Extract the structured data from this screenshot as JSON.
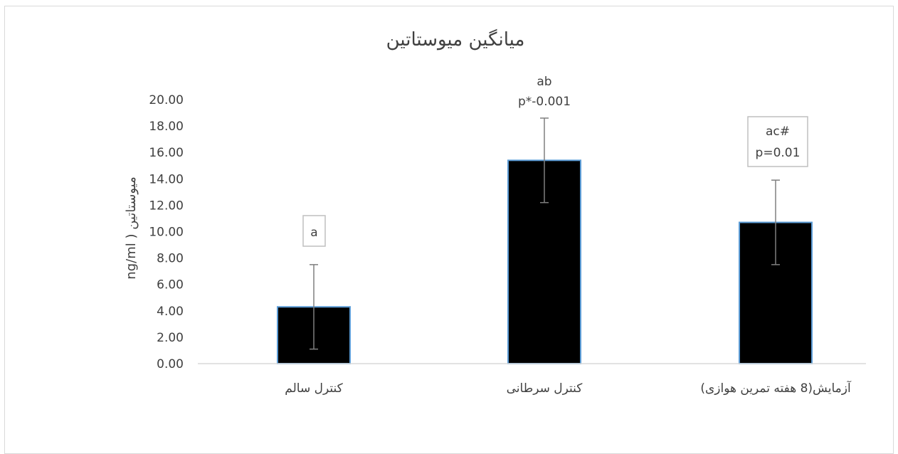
{
  "chart_data": {
    "type": "bar",
    "title": "میانگین میوستاتین",
    "ylabel": "ng/ml )  میوستاتین",
    "xlabel": "",
    "ylim": [
      0,
      20
    ],
    "ytick_step": 2,
    "ytick_labels": [
      "0.00",
      "2.00",
      "4.00",
      "6.00",
      "8.00",
      "10.00",
      "12.00",
      "14.00",
      "16.00",
      "18.00",
      "20.00"
    ],
    "grid": false,
    "legend": "none",
    "categories": [
      "کنترل سالم",
      "کنترل سرطانی",
      "آزمایش(8 هفته تمرین هوازی)"
    ],
    "values": [
      4.3,
      15.4,
      10.7
    ],
    "error_low": [
      1.1,
      12.2,
      7.5
    ],
    "error_high": [
      7.5,
      18.6,
      13.9
    ],
    "bar_color": "#000000",
    "bar_edge_color": "#5b9bd5",
    "error_color": "#7f7f7f",
    "annotations": [
      {
        "category": 0,
        "lines": [
          "a"
        ],
        "boxed": true
      },
      {
        "category": 1,
        "lines": [
          "ab",
          "p*-0.001"
        ],
        "boxed": false
      },
      {
        "category": 2,
        "lines": [
          "ac#",
          "p=0.01"
        ],
        "boxed": true
      }
    ]
  }
}
